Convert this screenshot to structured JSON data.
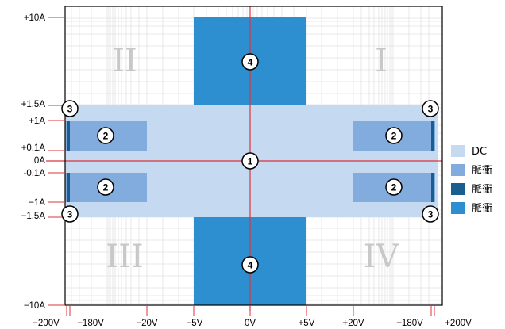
{
  "chart_data": {
    "type": "diagram",
    "y_tick_labels": [
      "+10A",
      "+1.5A",
      "+1A",
      "+0.1A",
      "0A",
      "-0.1A",
      "−1A",
      "−1.5A",
      "−10A"
    ],
    "x_tick_labels": [
      "−200V",
      "−180V",
      "−20V",
      "−5V",
      "0V",
      "+5V",
      "+20V",
      "+180V",
      "+200V"
    ],
    "quadrants": [
      "I",
      "II",
      "III",
      "IV"
    ],
    "region_markers": [
      "1",
      "2",
      "3",
      "4"
    ],
    "legend": [
      {
        "label": "DC",
        "color": "#c5d9f1"
      },
      {
        "label": "脈衝",
        "color": "#82acde"
      },
      {
        "label": "脈衝",
        "color": "#1a5e8f"
      },
      {
        "label": "脈衝",
        "color": "#2e8fd0"
      }
    ],
    "colors": {
      "axis": "#d9363e",
      "grid": "#e2e2e2",
      "frame": "#000000",
      "quadrant_text": "#c8c8c8"
    }
  }
}
